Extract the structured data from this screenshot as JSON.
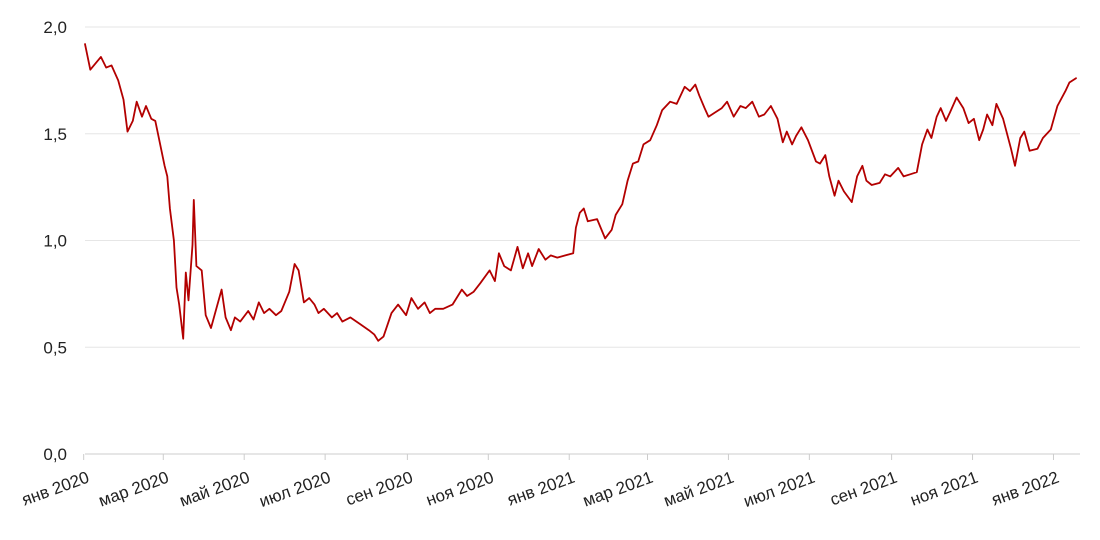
{
  "chart_data": {
    "type": "line",
    "title": "",
    "xlabel": "",
    "ylabel": "",
    "x_range": [
      "2020-01-02",
      "2022-01-21"
    ],
    "ylim": [
      0,
      2
    ],
    "y_ticks": [
      {
        "value": 0.0,
        "label": "0,0"
      },
      {
        "value": 0.5,
        "label": "0,5"
      },
      {
        "value": 1.0,
        "label": "1,0"
      },
      {
        "value": 1.5,
        "label": "1,5"
      },
      {
        "value": 2.0,
        "label": "2,0"
      }
    ],
    "x_ticks": [
      {
        "date": "2020-01-01",
        "label": "янв 2020"
      },
      {
        "date": "2020-03-01",
        "label": "мар 2020"
      },
      {
        "date": "2020-05-01",
        "label": "май 2020"
      },
      {
        "date": "2020-07-01",
        "label": "июл 2020"
      },
      {
        "date": "2020-09-01",
        "label": "сен 2020"
      },
      {
        "date": "2020-11-01",
        "label": "ноя 2020"
      },
      {
        "date": "2021-01-01",
        "label": "янв 2021"
      },
      {
        "date": "2021-03-01",
        "label": "мар 2021"
      },
      {
        "date": "2021-05-01",
        "label": "май 2021"
      },
      {
        "date": "2021-07-01",
        "label": "июл 2021"
      },
      {
        "date": "2021-09-01",
        "label": "сен 2021"
      },
      {
        "date": "2021-11-01",
        "label": "ноя 2021"
      },
      {
        "date": "2022-01-01",
        "label": "янв 2022"
      }
    ],
    "grid": true,
    "legend": "none",
    "colors": {
      "line": "#b30000",
      "grid": "#e6e6e6",
      "axis": "#cccccc"
    },
    "series": [
      {
        "points": [
          [
            "2020-01-02",
            1.92
          ],
          [
            "2020-01-06",
            1.8
          ],
          [
            "2020-01-10",
            1.83
          ],
          [
            "2020-01-14",
            1.86
          ],
          [
            "2020-01-18",
            1.81
          ],
          [
            "2020-01-22",
            1.82
          ],
          [
            "2020-01-27",
            1.75
          ],
          [
            "2020-01-31",
            1.66
          ],
          [
            "2020-02-03",
            1.51
          ],
          [
            "2020-02-07",
            1.56
          ],
          [
            "2020-02-10",
            1.65
          ],
          [
            "2020-02-14",
            1.58
          ],
          [
            "2020-02-17",
            1.63
          ],
          [
            "2020-02-21",
            1.57
          ],
          [
            "2020-02-24",
            1.56
          ],
          [
            "2020-02-27",
            1.47
          ],
          [
            "2020-03-02",
            1.35
          ],
          [
            "2020-03-04",
            1.3
          ],
          [
            "2020-03-06",
            1.15
          ],
          [
            "2020-03-09",
            1.0
          ],
          [
            "2020-03-11",
            0.78
          ],
          [
            "2020-03-13",
            0.7
          ],
          [
            "2020-03-16",
            0.54
          ],
          [
            "2020-03-18",
            0.85
          ],
          [
            "2020-03-20",
            0.72
          ],
          [
            "2020-03-23",
            0.98
          ],
          [
            "2020-03-24",
            1.19
          ],
          [
            "2020-03-26",
            0.88
          ],
          [
            "2020-03-30",
            0.86
          ],
          [
            "2020-04-02",
            0.65
          ],
          [
            "2020-04-06",
            0.59
          ],
          [
            "2020-04-10",
            0.68
          ],
          [
            "2020-04-14",
            0.77
          ],
          [
            "2020-04-17",
            0.64
          ],
          [
            "2020-04-21",
            0.58
          ],
          [
            "2020-04-24",
            0.64
          ],
          [
            "2020-04-28",
            0.62
          ],
          [
            "2020-05-04",
            0.67
          ],
          [
            "2020-05-08",
            0.63
          ],
          [
            "2020-05-12",
            0.71
          ],
          [
            "2020-05-16",
            0.66
          ],
          [
            "2020-05-20",
            0.68
          ],
          [
            "2020-05-25",
            0.65
          ],
          [
            "2020-05-29",
            0.67
          ],
          [
            "2020-06-04",
            0.76
          ],
          [
            "2020-06-08",
            0.89
          ],
          [
            "2020-06-11",
            0.86
          ],
          [
            "2020-06-15",
            0.71
          ],
          [
            "2020-06-19",
            0.73
          ],
          [
            "2020-06-23",
            0.7
          ],
          [
            "2020-06-26",
            0.66
          ],
          [
            "2020-06-30",
            0.68
          ],
          [
            "2020-07-06",
            0.64
          ],
          [
            "2020-07-10",
            0.66
          ],
          [
            "2020-07-14",
            0.62
          ],
          [
            "2020-07-20",
            0.64
          ],
          [
            "2020-07-27",
            0.61
          ],
          [
            "2020-08-03",
            0.58
          ],
          [
            "2020-08-07",
            0.56
          ],
          [
            "2020-08-10",
            0.53
          ],
          [
            "2020-08-14",
            0.55
          ],
          [
            "2020-08-20",
            0.66
          ],
          [
            "2020-08-25",
            0.7
          ],
          [
            "2020-08-31",
            0.65
          ],
          [
            "2020-09-04",
            0.73
          ],
          [
            "2020-09-09",
            0.68
          ],
          [
            "2020-09-14",
            0.71
          ],
          [
            "2020-09-18",
            0.66
          ],
          [
            "2020-09-22",
            0.68
          ],
          [
            "2020-09-28",
            0.68
          ],
          [
            "2020-10-05",
            0.7
          ],
          [
            "2020-10-12",
            0.77
          ],
          [
            "2020-10-16",
            0.74
          ],
          [
            "2020-10-21",
            0.76
          ],
          [
            "2020-10-26",
            0.8
          ],
          [
            "2020-11-02",
            0.86
          ],
          [
            "2020-11-06",
            0.81
          ],
          [
            "2020-11-09",
            0.94
          ],
          [
            "2020-11-13",
            0.88
          ],
          [
            "2020-11-18",
            0.86
          ],
          [
            "2020-11-23",
            0.97
          ],
          [
            "2020-11-27",
            0.87
          ],
          [
            "2020-12-01",
            0.94
          ],
          [
            "2020-12-04",
            0.88
          ],
          [
            "2020-12-09",
            0.96
          ],
          [
            "2020-12-14",
            0.91
          ],
          [
            "2020-12-18",
            0.93
          ],
          [
            "2020-12-23",
            0.92
          ],
          [
            "2020-12-29",
            0.93
          ],
          [
            "2021-01-04",
            0.94
          ],
          [
            "2021-01-06",
            1.06
          ],
          [
            "2021-01-09",
            1.13
          ],
          [
            "2021-01-12",
            1.15
          ],
          [
            "2021-01-15",
            1.09
          ],
          [
            "2021-01-22",
            1.1
          ],
          [
            "2021-01-28",
            1.01
          ],
          [
            "2021-02-02",
            1.05
          ],
          [
            "2021-02-05",
            1.12
          ],
          [
            "2021-02-10",
            1.17
          ],
          [
            "2021-02-14",
            1.28
          ],
          [
            "2021-02-18",
            1.36
          ],
          [
            "2021-02-22",
            1.37
          ],
          [
            "2021-02-26",
            1.45
          ],
          [
            "2021-03-03",
            1.47
          ],
          [
            "2021-03-08",
            1.54
          ],
          [
            "2021-03-12",
            1.61
          ],
          [
            "2021-03-18",
            1.65
          ],
          [
            "2021-03-23",
            1.64
          ],
          [
            "2021-03-29",
            1.72
          ],
          [
            "2021-04-02",
            1.7
          ],
          [
            "2021-04-06",
            1.73
          ],
          [
            "2021-04-09",
            1.68
          ],
          [
            "2021-04-13",
            1.62
          ],
          [
            "2021-04-16",
            1.58
          ],
          [
            "2021-04-21",
            1.6
          ],
          [
            "2021-04-26",
            1.62
          ],
          [
            "2021-04-30",
            1.65
          ],
          [
            "2021-05-05",
            1.58
          ],
          [
            "2021-05-10",
            1.63
          ],
          [
            "2021-05-14",
            1.62
          ],
          [
            "2021-05-19",
            1.65
          ],
          [
            "2021-05-24",
            1.58
          ],
          [
            "2021-05-28",
            1.59
          ],
          [
            "2021-06-02",
            1.63
          ],
          [
            "2021-06-07",
            1.57
          ],
          [
            "2021-06-11",
            1.46
          ],
          [
            "2021-06-14",
            1.51
          ],
          [
            "2021-06-18",
            1.45
          ],
          [
            "2021-06-21",
            1.49
          ],
          [
            "2021-06-25",
            1.53
          ],
          [
            "2021-06-30",
            1.47
          ],
          [
            "2021-07-06",
            1.37
          ],
          [
            "2021-07-09",
            1.36
          ],
          [
            "2021-07-13",
            1.4
          ],
          [
            "2021-07-16",
            1.3
          ],
          [
            "2021-07-20",
            1.21
          ],
          [
            "2021-07-23",
            1.28
          ],
          [
            "2021-07-27",
            1.23
          ],
          [
            "2021-08-02",
            1.18
          ],
          [
            "2021-08-06",
            1.3
          ],
          [
            "2021-08-10",
            1.35
          ],
          [
            "2021-08-13",
            1.28
          ],
          [
            "2021-08-17",
            1.26
          ],
          [
            "2021-08-23",
            1.27
          ],
          [
            "2021-08-27",
            1.31
          ],
          [
            "2021-08-31",
            1.3
          ],
          [
            "2021-09-06",
            1.34
          ],
          [
            "2021-09-10",
            1.3
          ],
          [
            "2021-09-15",
            1.31
          ],
          [
            "2021-09-20",
            1.32
          ],
          [
            "2021-09-24",
            1.45
          ],
          [
            "2021-09-28",
            1.52
          ],
          [
            "2021-10-01",
            1.48
          ],
          [
            "2021-10-05",
            1.58
          ],
          [
            "2021-10-08",
            1.62
          ],
          [
            "2021-10-12",
            1.56
          ],
          [
            "2021-10-15",
            1.6
          ],
          [
            "2021-10-20",
            1.67
          ],
          [
            "2021-10-25",
            1.62
          ],
          [
            "2021-10-29",
            1.55
          ],
          [
            "2021-11-02",
            1.57
          ],
          [
            "2021-11-06",
            1.47
          ],
          [
            "2021-11-09",
            1.52
          ],
          [
            "2021-11-12",
            1.59
          ],
          [
            "2021-11-16",
            1.54
          ],
          [
            "2021-11-19",
            1.64
          ],
          [
            "2021-11-24",
            1.57
          ],
          [
            "2021-11-30",
            1.43
          ],
          [
            "2021-12-03",
            1.35
          ],
          [
            "2021-12-07",
            1.48
          ],
          [
            "2021-12-10",
            1.51
          ],
          [
            "2021-12-14",
            1.42
          ],
          [
            "2021-12-20",
            1.43
          ],
          [
            "2021-12-24",
            1.48
          ],
          [
            "2021-12-30",
            1.52
          ],
          [
            "2022-01-04",
            1.63
          ],
          [
            "2022-01-10",
            1.7
          ],
          [
            "2022-01-13",
            1.74
          ],
          [
            "2022-01-18",
            1.76
          ]
        ]
      }
    ]
  }
}
